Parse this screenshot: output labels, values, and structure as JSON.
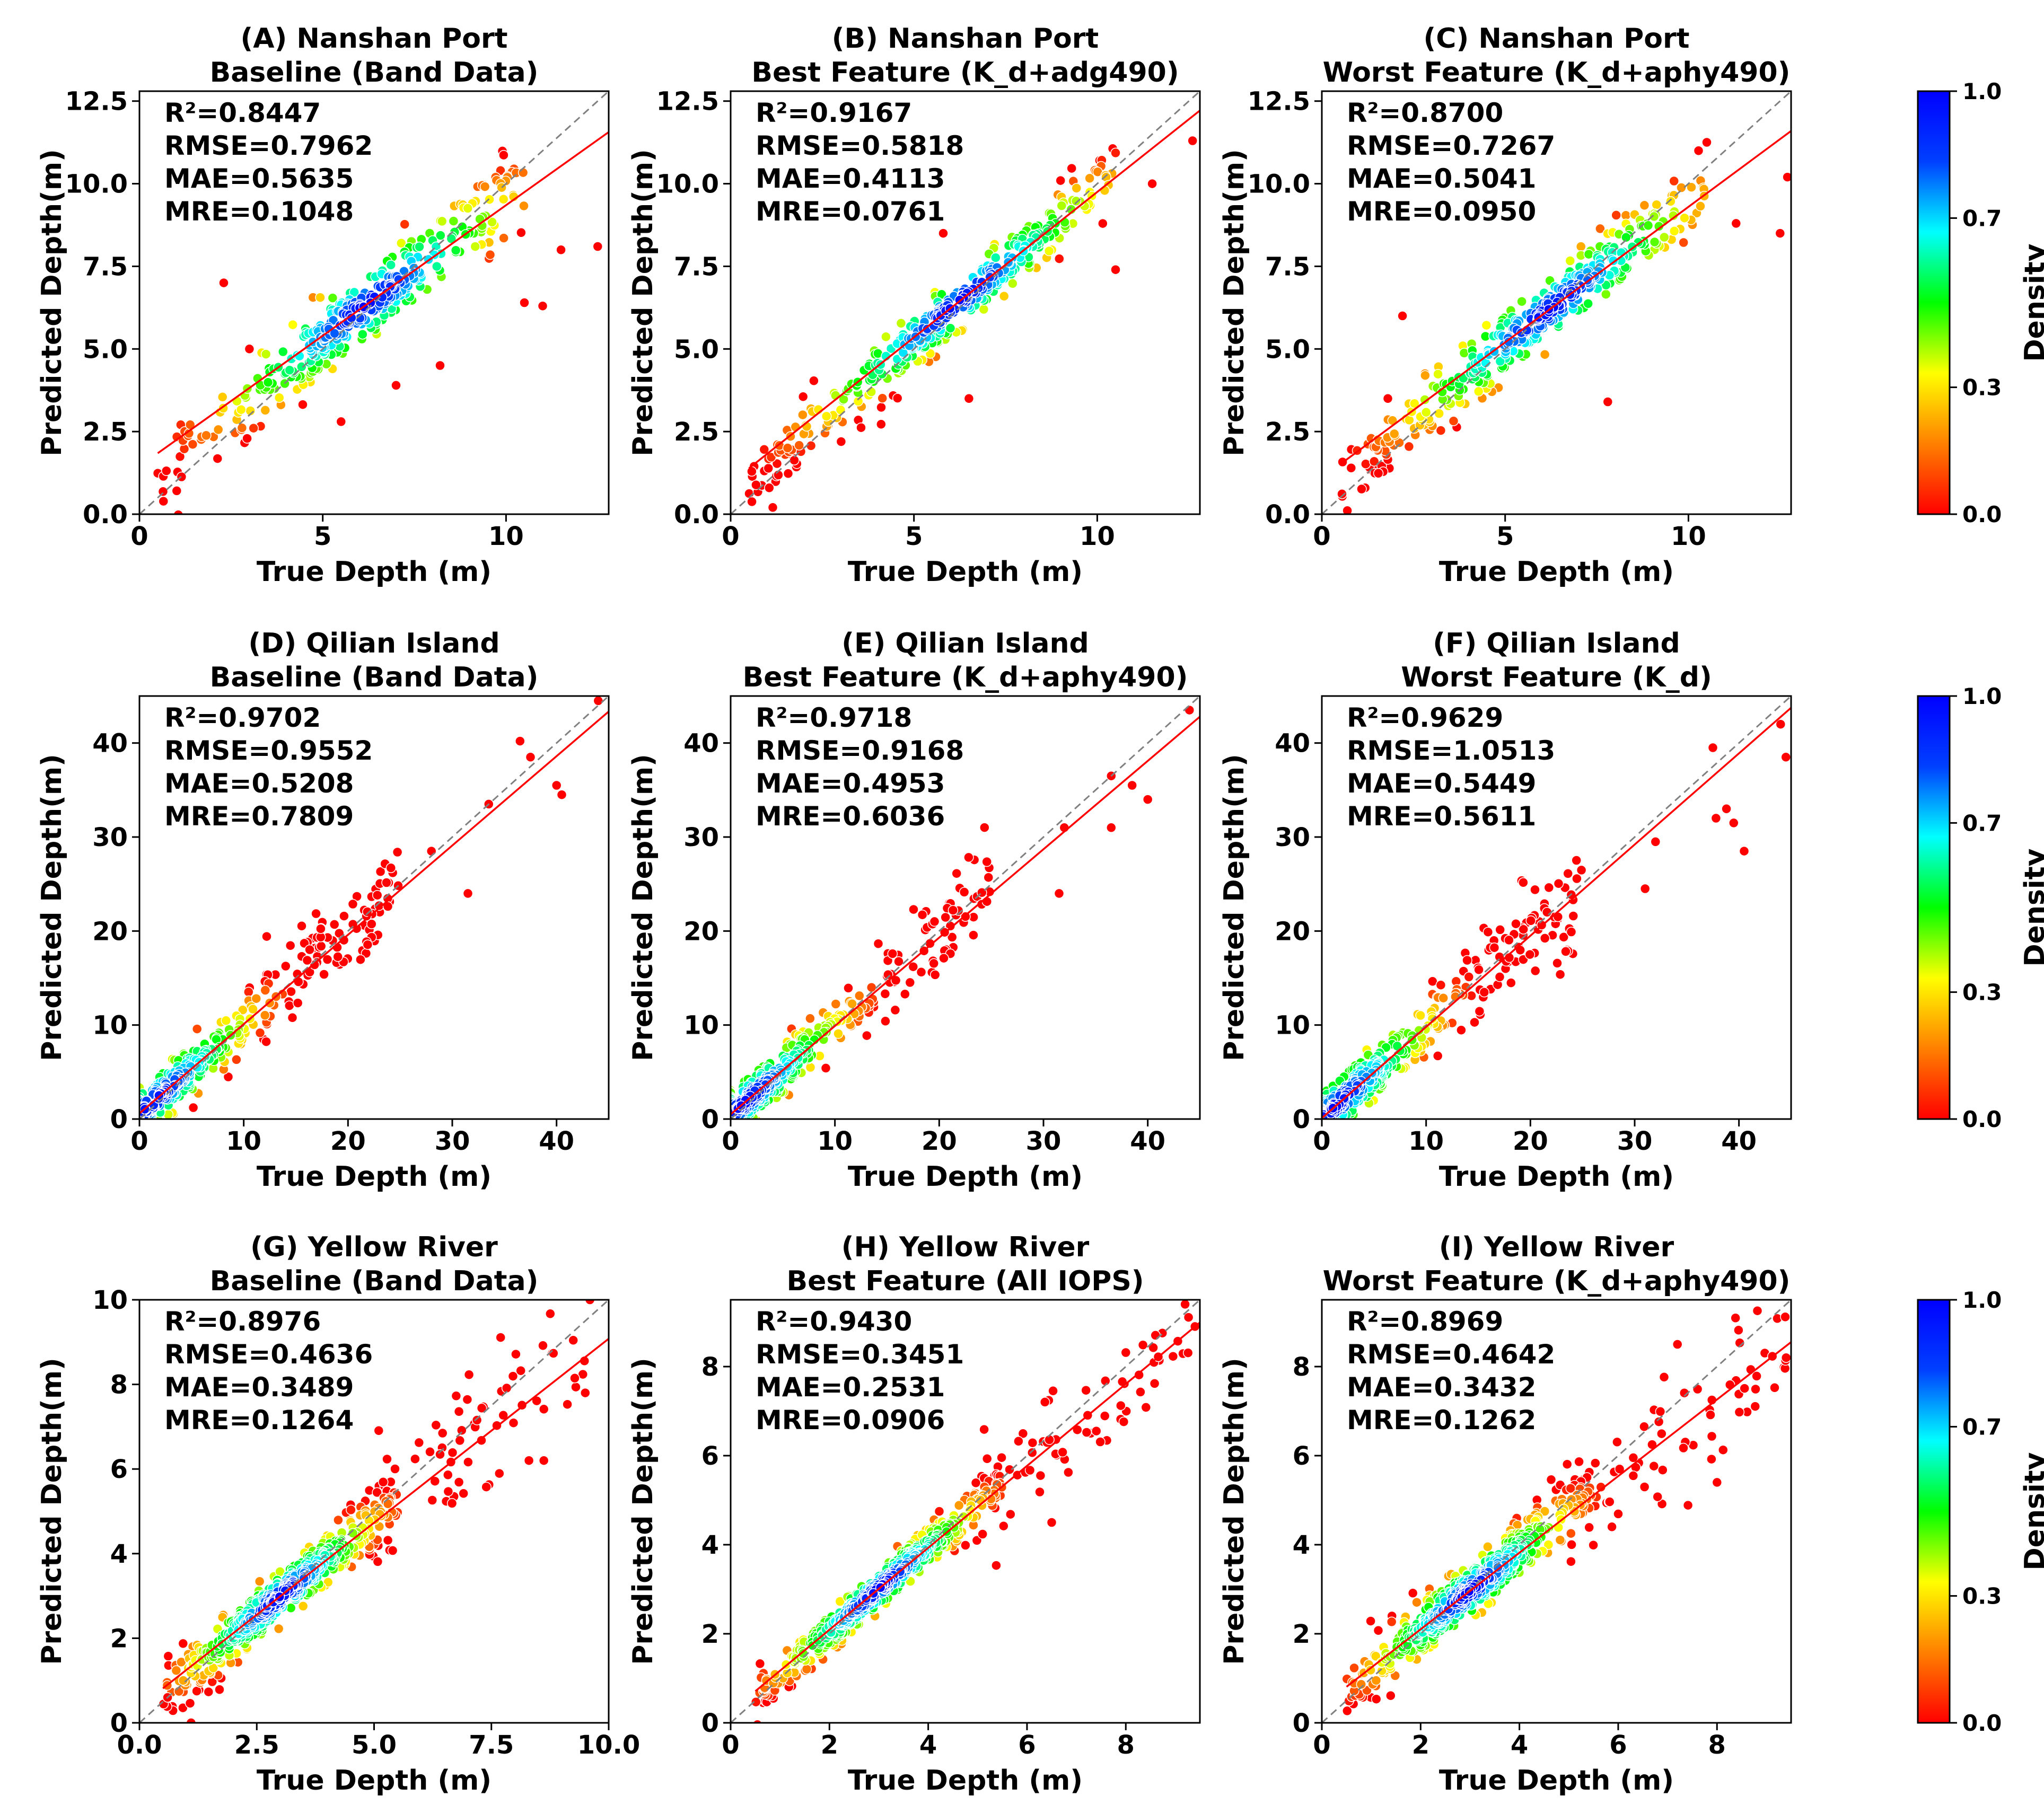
{
  "figure": {
    "colorbar_label": "Density",
    "colorbar_ticks": [
      "0.0",
      "0.3",
      "0.7",
      "1.0"
    ],
    "colormap": [
      "#ff0000",
      "#ff8000",
      "#ffff00",
      "#00ff00",
      "#00ffff",
      "#0040ff",
      "#0000ff"
    ],
    "point_edge_color": "#ffffff",
    "fit_line_color": "#ff0000",
    "identity_line_color": "#808080"
  },
  "chart_data": [
    {
      "type": "scatter",
      "title": "(A) Nanshan Port",
      "subtitle": "Baseline (Band Data)",
      "xlabel": "True Depth (m)",
      "ylabel": "Predicted Depth(m)",
      "xlim": [
        0,
        12.8
      ],
      "ylim": [
        0,
        12.8
      ],
      "xticks": [
        "0",
        "5",
        "10"
      ],
      "yticks": [
        "0.0",
        "2.5",
        "5.0",
        "7.5",
        "10.0",
        "12.5"
      ],
      "stats": [
        "R²=0.8447",
        "RMSE=0.7962",
        "MAE=0.5635",
        "MRE=0.1048"
      ],
      "fit": {
        "slope": 0.79,
        "intercept": 1.45
      },
      "identity_line": true,
      "cloud": {
        "x_range": [
          0.5,
          10.5
        ],
        "spread": 0.8,
        "dense_center": 6.2,
        "n": 380,
        "seed": 11
      },
      "outliers": [
        [
          2.3,
          7.0
        ],
        [
          11.5,
          8.0
        ],
        [
          12.5,
          8.1
        ],
        [
          10.5,
          6.4
        ],
        [
          5.5,
          2.8
        ],
        [
          3.0,
          5.0
        ],
        [
          7.0,
          3.9
        ],
        [
          8.2,
          4.5
        ],
        [
          11.0,
          6.3
        ]
      ]
    },
    {
      "type": "scatter",
      "title": "(B) Nanshan Port",
      "subtitle": "Best Feature (K_d+adg490)",
      "xlabel": "True Depth (m)",
      "ylabel": "Predicted Depth(m)",
      "xlim": [
        0,
        12.8
      ],
      "ylim": [
        0,
        12.8
      ],
      "xticks": [
        "0",
        "5",
        "10"
      ],
      "yticks": [
        "0.0",
        "2.5",
        "5.0",
        "7.5",
        "10.0",
        "12.5"
      ],
      "stats": [
        "R²=0.9167",
        "RMSE=0.5818",
        "MAE=0.4113",
        "MRE=0.0761"
      ],
      "fit": {
        "slope": 0.88,
        "intercept": 0.95
      },
      "identity_line": true,
      "cloud": {
        "x_range": [
          0.5,
          10.5
        ],
        "spread": 0.6,
        "dense_center": 6.2,
        "n": 380,
        "seed": 23
      },
      "outliers": [
        [
          12.6,
          11.3
        ],
        [
          11.5,
          10.0
        ],
        [
          6.5,
          3.5
        ],
        [
          5.8,
          8.5
        ],
        [
          10.5,
          7.4
        ]
      ]
    },
    {
      "type": "scatter",
      "title": "(C) Nanshan Port",
      "subtitle": "Worst Feature (K_d+aphy490)",
      "xlabel": "True Depth (m)",
      "ylabel": "Predicted Depth(m)",
      "xlim": [
        0,
        12.8
      ],
      "ylim": [
        0,
        12.8
      ],
      "xticks": [
        "0",
        "5",
        "10"
      ],
      "yticks": [
        "0.0",
        "2.5",
        "5.0",
        "7.5",
        "10.0",
        "12.5"
      ],
      "stats": [
        "R²=0.8700",
        "RMSE=0.7267",
        "MAE=0.5041",
        "MRE=0.0950"
      ],
      "fit": {
        "slope": 0.82,
        "intercept": 1.1
      },
      "identity_line": true,
      "cloud": {
        "x_range": [
          0.5,
          10.5
        ],
        "spread": 0.72,
        "dense_center": 6.2,
        "n": 380,
        "seed": 37
      },
      "outliers": [
        [
          12.5,
          8.5
        ],
        [
          12.7,
          10.2
        ],
        [
          11.3,
          8.8
        ],
        [
          2.2,
          6.0
        ],
        [
          7.8,
          3.4
        ],
        [
          0.8,
          1.4
        ],
        [
          1.8,
          3.5
        ]
      ]
    },
    {
      "type": "scatter",
      "title": "(D) Qilian Island",
      "subtitle": "Baseline (Band Data)",
      "xlabel": "True Depth (m)",
      "ylabel": "Predicted Depth(m)",
      "xlim": [
        0,
        45
      ],
      "ylim": [
        0,
        45
      ],
      "xticks": [
        "0",
        "10",
        "20",
        "30",
        "40"
      ],
      "yticks": [
        "0",
        "10",
        "20",
        "30",
        "40"
      ],
      "stats": [
        "R²=0.9702",
        "RMSE=0.9552",
        "MAE=0.5208",
        "MRE=0.7809"
      ],
      "fit": {
        "slope": 0.95,
        "intercept": 0.6
      },
      "identity_line": true,
      "cloud": {
        "x_range": [
          0,
          25
        ],
        "spread": 2.0,
        "dense_center": 1.2,
        "n": 420,
        "seed": 51
      },
      "outliers": [
        [
          36.5,
          40.2
        ],
        [
          37.5,
          38.5
        ],
        [
          40.0,
          35.5
        ],
        [
          40.5,
          34.5
        ],
        [
          44.0,
          44.5
        ],
        [
          31.5,
          24.0
        ],
        [
          33.5,
          33.5
        ],
        [
          28.0,
          28.5
        ]
      ]
    },
    {
      "type": "scatter",
      "title": "(E) Qilian Island",
      "subtitle": "Best Feature (K_d+aphy490)",
      "xlabel": "True Depth (m)",
      "ylabel": "Predicted Depth(m)",
      "xlim": [
        0,
        45
      ],
      "ylim": [
        0,
        45
      ],
      "xticks": [
        "0",
        "10",
        "20",
        "30",
        "40"
      ],
      "yticks": [
        "0",
        "10",
        "20",
        "30",
        "40"
      ],
      "stats": [
        "R²=0.9718",
        "RMSE=0.9168",
        "MAE=0.4953",
        "MRE=0.6036"
      ],
      "fit": {
        "slope": 0.94,
        "intercept": 0.5
      },
      "identity_line": true,
      "cloud": {
        "x_range": [
          0,
          25
        ],
        "spread": 1.9,
        "dense_center": 1.2,
        "n": 420,
        "seed": 67
      },
      "outliers": [
        [
          44.0,
          43.5
        ],
        [
          38.5,
          35.5
        ],
        [
          40.0,
          34.0
        ],
        [
          36.5,
          31.0
        ],
        [
          32.0,
          31.0
        ],
        [
          31.5,
          24.0
        ],
        [
          36.5,
          36.5
        ]
      ]
    },
    {
      "type": "scatter",
      "title": "(F) Qilian Island",
      "subtitle": "Worst Feature (K_d)",
      "xlabel": "True Depth (m)",
      "ylabel": "Predicted Depth(m)",
      "xlim": [
        0,
        45
      ],
      "ylim": [
        0,
        45
      ],
      "xticks": [
        "0",
        "10",
        "20",
        "30",
        "40"
      ],
      "yticks": [
        "0",
        "10",
        "20",
        "30",
        "40"
      ],
      "stats": [
        "R²=0.9629",
        "RMSE=1.0513",
        "MAE=0.5449",
        "MRE=0.5611"
      ],
      "fit": {
        "slope": 0.97,
        "intercept": 0.1
      },
      "identity_line": true,
      "cloud": {
        "x_range": [
          0,
          25
        ],
        "spread": 2.2,
        "dense_center": 1.2,
        "n": 420,
        "seed": 79
      },
      "outliers": [
        [
          37.5,
          39.5
        ],
        [
          37.8,
          32.0
        ],
        [
          38.8,
          33.0
        ],
        [
          39.5,
          31.5
        ],
        [
          40.5,
          28.5
        ],
        [
          44.0,
          42.0
        ],
        [
          44.5,
          38.5
        ],
        [
          32.0,
          29.5
        ],
        [
          31.0,
          24.5
        ]
      ]
    },
    {
      "type": "scatter",
      "title": "(G) Yellow River",
      "subtitle": "Baseline (Band Data)",
      "xlabel": "True Depth (m)",
      "ylabel": "Predicted Depth(m)",
      "xlim": [
        0,
        10.0
      ],
      "ylim": [
        0,
        10.0
      ],
      "xticks": [
        "0.0",
        "2.5",
        "5.0",
        "7.5",
        "10.0"
      ],
      "yticks": [
        "0",
        "2",
        "4",
        "6",
        "8",
        "10"
      ],
      "stats": [
        "R²=0.8976",
        "RMSE=0.4636",
        "MAE=0.3489",
        "MRE=0.1264"
      ],
      "fit": {
        "slope": 0.87,
        "intercept": 0.38
      },
      "identity_line": true,
      "cloud": {
        "x_range": [
          0.5,
          5.5
        ],
        "spread": 0.42,
        "dense_center": 3.0,
        "n": 520,
        "seed": 83
      },
      "tail": {
        "x_range": [
          5.0,
          9.5
        ],
        "spread": 0.75,
        "n": 70
      },
      "outliers": [
        [
          9.6,
          10.0
        ],
        [
          1.1,
          0.0
        ],
        [
          0.6,
          0.6
        ],
        [
          9.5,
          7.8
        ],
        [
          8.3,
          6.2
        ]
      ]
    },
    {
      "type": "scatter",
      "title": "(H) Yellow River",
      "subtitle": "Best Feature (All IOPS)",
      "xlabel": "True Depth (m)",
      "ylabel": "Predicted Depth(m)",
      "xlim": [
        0,
        9.5
      ],
      "ylim": [
        0,
        9.5
      ],
      "xticks": [
        "0",
        "2",
        "4",
        "6",
        "8"
      ],
      "yticks": [
        "0",
        "2",
        "4",
        "6",
        "8"
      ],
      "stats": [
        "R²=0.9430",
        "RMSE=0.3451",
        "MAE=0.2531",
        "MRE=0.0906"
      ],
      "fit": {
        "slope": 0.92,
        "intercept": 0.25
      },
      "identity_line": true,
      "cloud": {
        "x_range": [
          0.5,
          5.5
        ],
        "spread": 0.32,
        "dense_center": 3.0,
        "n": 520,
        "seed": 97
      },
      "tail": {
        "x_range": [
          5.0,
          9.3
        ],
        "spread": 0.55,
        "n": 70
      },
      "outliers": [
        [
          9.2,
          9.4
        ],
        [
          9.4,
          8.9
        ],
        [
          6.5,
          4.5
        ]
      ]
    },
    {
      "type": "scatter",
      "title": "(I) Yellow River",
      "subtitle": "Worst Feature (K_d+aphy490)",
      "xlabel": "True Depth (m)",
      "ylabel": "Predicted Depth(m)",
      "xlim": [
        0,
        9.5
      ],
      "ylim": [
        0,
        9.5
      ],
      "xticks": [
        "0",
        "2",
        "4",
        "6",
        "8"
      ],
      "yticks": [
        "0",
        "2",
        "4",
        "6",
        "8"
      ],
      "stats": [
        "R²=0.8969",
        "RMSE=0.4642",
        "MAE=0.3432",
        "MRE=0.1262"
      ],
      "fit": {
        "slope": 0.86,
        "intercept": 0.38
      },
      "identity_line": true,
      "cloud": {
        "x_range": [
          0.5,
          5.5
        ],
        "spread": 0.42,
        "dense_center": 3.0,
        "n": 520,
        "seed": 109
      },
      "tail": {
        "x_range": [
          5.0,
          9.4
        ],
        "spread": 0.8,
        "n": 70
      },
      "outliers": [
        [
          9.4,
          8.2
        ],
        [
          8.0,
          5.4
        ],
        [
          7.2,
          8.5
        ]
      ]
    }
  ]
}
